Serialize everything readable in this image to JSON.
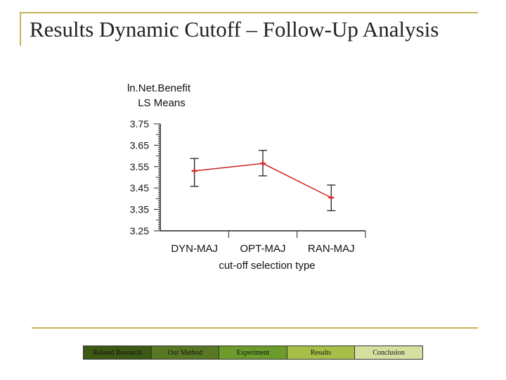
{
  "slide": {
    "title": "Results Dynamic Cutoff – Follow-Up Analysis"
  },
  "chart_data": {
    "type": "line",
    "title_lines": [
      "ln.Net.Benefit",
      "LS Means"
    ],
    "xlabel": "cut-off selection type",
    "ylabel": "",
    "categories": [
      "DYN-MAJ",
      "OPT-MAJ",
      "RAN-MAJ"
    ],
    "values": [
      3.53,
      3.565,
      3.405
    ],
    "error_low": [
      3.458,
      3.507,
      3.344
    ],
    "error_high": [
      3.588,
      3.626,
      3.464
    ],
    "ylim": [
      3.25,
      3.75
    ],
    "yticks": [
      "3.75",
      "3.65",
      "3.55",
      "3.45",
      "3.35",
      "3.25"
    ],
    "grid": false,
    "legend": "none",
    "line_color": "#cc2222"
  },
  "nav": {
    "items": [
      {
        "label": "Related Research",
        "color": "#3c5a14"
      },
      {
        "label": "Our Method",
        "color": "#587824"
      },
      {
        "label": "Experiment",
        "color": "#6c9c2c"
      },
      {
        "label": "Results",
        "color": "#a7bf49"
      },
      {
        "label": "Conclusion",
        "color": "#d6e0a0"
      }
    ]
  }
}
